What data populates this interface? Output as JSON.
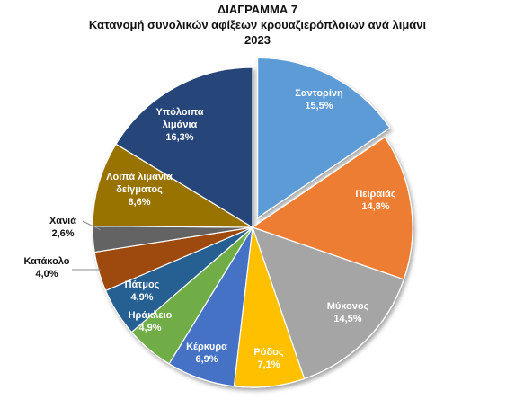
{
  "chart_data": {
    "type": "pie",
    "title": "ΔΙΑΓΡΑΜΜΑ 7",
    "subtitle": "Κατανομή συνολικών αφίξεων κρουαζιερόπλοιων ανά λιμάνι",
    "year": "2023",
    "slices": [
      {
        "name": "Σαντορίνη",
        "value": 15.5,
        "label": "15,5%",
        "color": "#5b9bd5"
      },
      {
        "name": "Πειραιάς",
        "value": 14.8,
        "label": "14,8%",
        "color": "#ed7d31"
      },
      {
        "name": "Μύκονος",
        "value": 14.5,
        "label": "14,5%",
        "color": "#a5a5a5"
      },
      {
        "name": "Ρόδος",
        "value": 7.1,
        "label": "7,1%",
        "color": "#ffc000"
      },
      {
        "name": "Κέρκυρα",
        "value": 6.9,
        "label": "6,9%",
        "color": "#4472c4"
      },
      {
        "name": "Ηράκλειο",
        "value": 4.9,
        "label": "4,9%",
        "color": "#70ad47"
      },
      {
        "name": "Πάτμος",
        "value": 4.9,
        "label": "4,9%",
        "color": "#255e91"
      },
      {
        "name": "Κατάκολο",
        "value": 4.0,
        "label": "4,0%",
        "color": "#9e480e"
      },
      {
        "name": "Χανιά",
        "value": 2.6,
        "label": "2,6%",
        "color": "#636363"
      },
      {
        "name": "Λοιπά λιμάνια δείγματος",
        "value": 8.6,
        "label": "8,6%",
        "color": "#997300"
      },
      {
        "name": "Υπόλοιπα λιμάνια",
        "value": 16.3,
        "label": "16,3%",
        "color": "#264478"
      }
    ]
  }
}
